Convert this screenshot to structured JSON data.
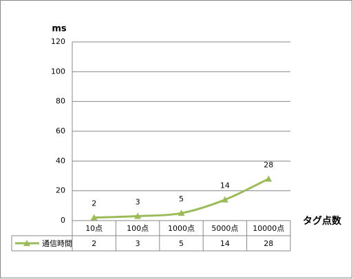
{
  "chart_data": {
    "type": "line",
    "y_label": "ms",
    "x_label": "タグ点数",
    "categories": [
      "10点",
      "100点",
      "1000点",
      "5000点",
      "10000点"
    ],
    "series": [
      {
        "name": "通信時間",
        "color": "#9bbb59",
        "values": [
          2,
          3,
          5,
          14,
          28
        ]
      }
    ],
    "ylim": [
      0,
      120
    ],
    "yticks": [
      0,
      20,
      40,
      60,
      80,
      100,
      120
    ],
    "grid": true,
    "legend": "table-left",
    "data_table": true
  }
}
